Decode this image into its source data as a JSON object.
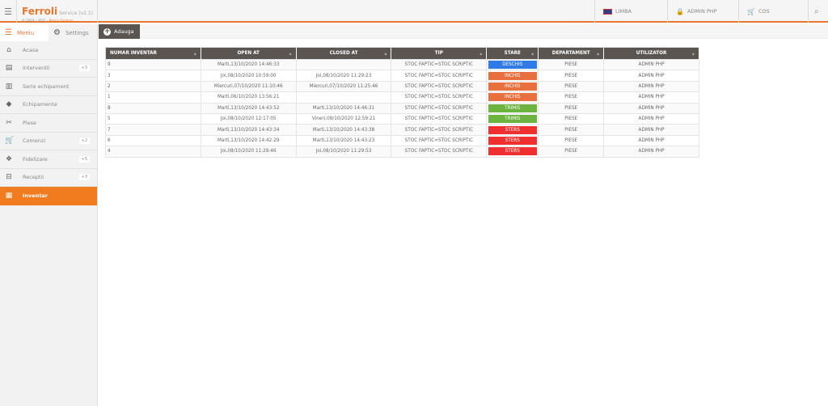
{
  "header": {
    "brand": "Ferroli",
    "version": "Service (v2.1)",
    "copyright": "© 2019 - 2021 - ",
    "company": "Pamro Solution",
    "items": [
      {
        "label": "LIMBA",
        "icon": "uk-flag-icon"
      },
      {
        "label": "ADMIN PHP",
        "icon": "lock-icon"
      },
      {
        "label": "COS",
        "icon": "cart-icon"
      }
    ]
  },
  "sidebar": {
    "tabs": [
      {
        "label": "Meniu"
      },
      {
        "label": "Settings"
      }
    ],
    "items": [
      {
        "label": "Acasa",
        "icon": "home-icon"
      },
      {
        "label": "Interventii",
        "badge": "+3"
      },
      {
        "label": "Serie echipament"
      },
      {
        "label": "Echipamente"
      },
      {
        "label": "Piese"
      },
      {
        "label": "Comenzi",
        "badge": "+2"
      },
      {
        "label": "Fidelizare",
        "badge": "+5"
      },
      {
        "label": "Receptii",
        "badge": "+3"
      },
      {
        "label": "Inventar",
        "active": true
      }
    ]
  },
  "toolbar": {
    "add_label": "Adauga"
  },
  "table": {
    "columns": [
      "NUMAR INVENTAR",
      "OPEN AT",
      "CLOSED AT",
      "TIP",
      "STARE",
      "DEPARTAMENT",
      "UTILIZATOR"
    ],
    "status_colors": {
      "DESCHIS": "#2f7ae5",
      "INCHIS": "#e8703f",
      "TRIMIS": "#6cb33f",
      "STERS": "#f03030"
    },
    "rows": [
      [
        "9",
        "Marti,13/10/2020 14:46:33",
        "",
        "STOC FAPTIC=STOC SCRIPTIC",
        "DESCHIS",
        "PIESE",
        "ADMIN PHP"
      ],
      [
        "3",
        "Joi,08/10/2020 10:59:00",
        "Joi,08/10/2020 11:29:23",
        "STOC FAPTIC=STOC SCRIPTIC",
        "INCHIS",
        "PIESE",
        "ADMIN PHP"
      ],
      [
        "2",
        "Miercuri,07/10/2020 11:10:46",
        "Miercuri,07/10/2020 11:25:46",
        "STOC FAPTIC=STOC SCRIPTIC",
        "INCHIS",
        "PIESE",
        "ADMIN PHP"
      ],
      [
        "1",
        "Marti,06/10/2020 13:56:21",
        "",
        "STOC FAPTIC=STOC SCRIPTIC",
        "INCHIS",
        "PIESE",
        "ADMIN PHP"
      ],
      [
        "8",
        "Marti,13/10/2020 14:43:52",
        "Marti,13/10/2020 14:46:31",
        "STOC FAPTIC=STOC SCRIPTIC",
        "TRIMIS",
        "PIESE",
        "ADMIN PHP"
      ],
      [
        "5",
        "Joi,08/10/2020 12:17:05",
        "Vineri,09/10/2020 12:59:21",
        "STOC FAPTIC=STOC SCRIPTIC",
        "TRIMIS",
        "PIESE",
        "ADMIN PHP"
      ],
      [
        "7",
        "Marti,13/10/2020 14:43:34",
        "Marti,13/10/2020 14:43:38",
        "STOC FAPTIC=STOC SCRIPTIC",
        "STERS",
        "PIESE",
        "ADMIN PHP"
      ],
      [
        "6",
        "Marti,13/10/2020 14:42:29",
        "Marti,13/10/2020 14:43:23",
        "STOC FAPTIC=STOC SCRIPTIC",
        "STERS",
        "PIESE",
        "ADMIN PHP"
      ],
      [
        "4",
        "Joi,08/10/2020 11:29:46",
        "Joi,08/10/2020 11:29:53",
        "STOC FAPTIC=STOC SCRIPTIC",
        "STERS",
        "PIESE",
        "ADMIN PHP"
      ]
    ]
  }
}
